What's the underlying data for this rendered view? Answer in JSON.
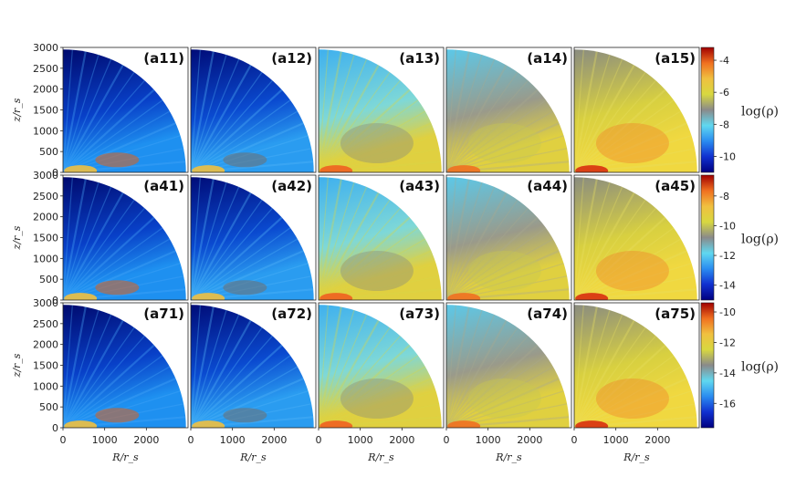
{
  "chart_data": {
    "type": "heatmap",
    "description_panels": [
      [
        "(a11)",
        "(a12)",
        "(a13)",
        "(a14)",
        "(a15)"
      ],
      [
        "(a41)",
        "(a42)",
        "(a43)",
        "(a44)",
        "(a45)"
      ],
      [
        "(a71)",
        "(a72)",
        "(a73)",
        "(a74)",
        "(a75)"
      ]
    ],
    "xlabel": "R/r_s",
    "ylabel": "z/r_s",
    "x_ticks": [
      0,
      1000,
      2000
    ],
    "y_ticks": [
      0,
      500,
      1000,
      1500,
      2000,
      2500,
      3000
    ],
    "xlim": [
      0,
      3000
    ],
    "ylim": [
      0,
      3000
    ],
    "colorbar_label": "log(ρ)",
    "colorbars": [
      {
        "row": 1,
        "ticks": [
          -4,
          -6,
          -8,
          -10
        ],
        "range": [
          -11,
          -3.2
        ]
      },
      {
        "row": 2,
        "ticks": [
          -8,
          -10,
          -12,
          -14
        ],
        "range": [
          -15,
          -6.6
        ]
      },
      {
        "row": 3,
        "ticks": [
          -10,
          -12,
          -14,
          -16
        ],
        "range": [
          -17.6,
          -9.4
        ]
      }
    ],
    "colormap": [
      "#000080",
      "#1030d0",
      "#2a8cf0",
      "#60d8f0",
      "#8a8a8a",
      "#d8d840",
      "#f0c040",
      "#f07020",
      "#a00000"
    ]
  }
}
